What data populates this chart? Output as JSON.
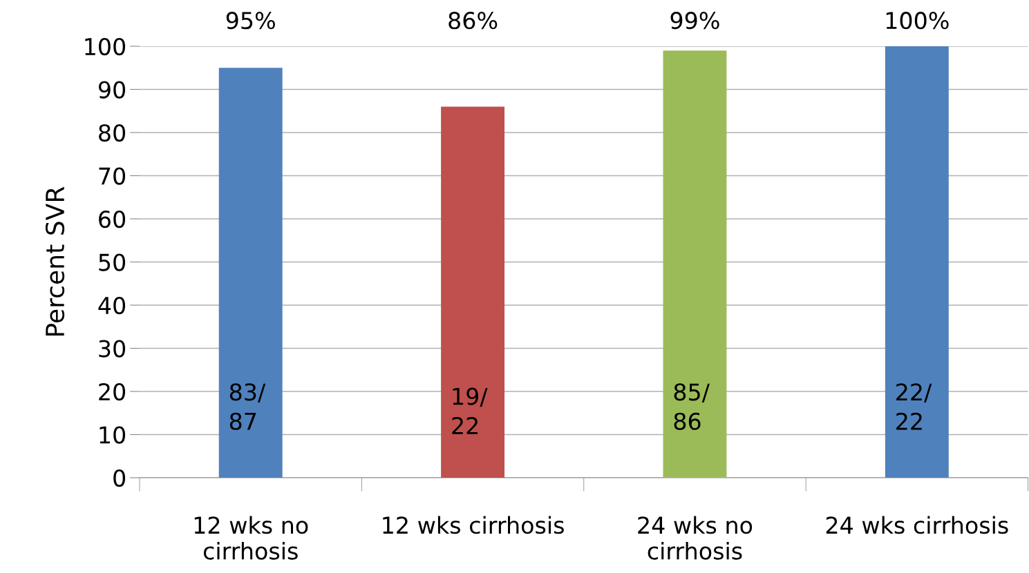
{
  "chart_data": {
    "type": "bar",
    "ylabel": "Percent SVR",
    "categories": [
      "12 wks no\ncirrhosis",
      "12 wks cirrhosis",
      "24 wks no\ncirrhosis",
      "24 wks cirrhosis"
    ],
    "values": [
      95,
      86,
      99,
      100
    ],
    "colors": [
      "#4f81bd",
      "#c0504d",
      "#9bbb59",
      "#4f81bd"
    ],
    "annotations": [
      "95%",
      "86%",
      "99%",
      "100%",
      "83/\n87",
      "19/\n22",
      "85/\n86",
      "22/\n22"
    ],
    "ylim": [
      0,
      100
    ],
    "yticks": [
      0,
      10,
      20,
      30,
      40,
      50,
      60,
      70,
      80,
      90,
      100
    ],
    "grid": "y",
    "legend": false
  }
}
